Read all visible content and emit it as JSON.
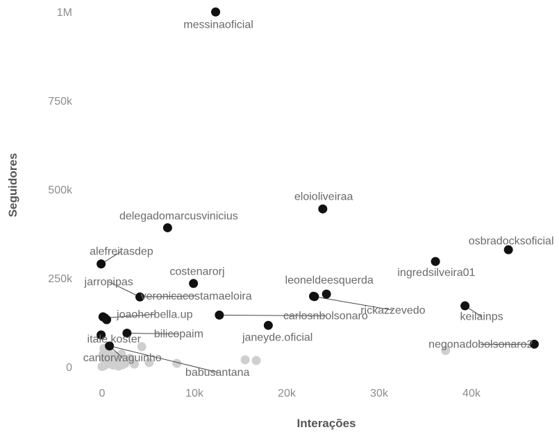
{
  "chart_data": {
    "type": "scatter",
    "xlabel": "Interações",
    "ylabel": "Seguidores",
    "xlim": [
      -1500,
      48500
    ],
    "ylim": [
      -35000,
      1020000
    ],
    "grid": false,
    "x_ticks": [
      {
        "value": 0,
        "label": "0"
      },
      {
        "value": 10000,
        "label": "10k"
      },
      {
        "value": 20000,
        "label": "20k"
      },
      {
        "value": 30000,
        "label": "30k"
      },
      {
        "value": 40000,
        "label": "40k"
      }
    ],
    "y_ticks": [
      {
        "value": 0,
        "label": "0"
      },
      {
        "value": 250000,
        "label": "250k"
      },
      {
        "value": 500000,
        "label": "500k"
      },
      {
        "value": 750000,
        "label": "750k"
      },
      {
        "value": 1000000,
        "label": "1M"
      }
    ],
    "highlight_color": "#111111",
    "other_color": "#cfcfcf",
    "labeled_points": [
      {
        "name": "messinaoficial",
        "x": 12300,
        "y": 1000000,
        "lx": 12600,
        "ly": 955000
      },
      {
        "name": "eloioliveiraa",
        "x": 23900,
        "y": 445000,
        "lx": 24000,
        "ly": 470000
      },
      {
        "name": "delegadomarcusvinicius",
        "x": 7100,
        "y": 392000,
        "lx": 8300,
        "ly": 415000
      },
      {
        "name": "osbradocksoficial",
        "x": 44000,
        "y": 330000,
        "lx": 44300,
        "ly": 345000
      },
      {
        "name": "alefreitasdep",
        "x": -100,
        "y": 290000,
        "lx": 2100,
        "ly": 316000
      },
      {
        "name": "ingredsilveira01",
        "x": 36100,
        "y": 297000,
        "lx": 36200,
        "ly": 256000
      },
      {
        "name": "costenarorj",
        "x": 9900,
        "y": 235000,
        "lx": 10300,
        "ly": 259000
      },
      {
        "name": "leoneldeesquerda",
        "x": 24300,
        "y": 205000,
        "lx": 24600,
        "ly": 235000
      },
      {
        "name": "jarropipas",
        "x": 4100,
        "y": 197000,
        "lx": 730,
        "ly": 230000
      },
      {
        "name": "veronicacostamaeloira",
        "x": 4100,
        "y": 197000,
        "lx": 10200,
        "ly": 190000
      },
      {
        "name": "rickazzevedo",
        "x": 23000,
        "y": 198000,
        "lx": 31500,
        "ly": 150000
      },
      {
        "name": "keilainps",
        "x": 39300,
        "y": 172000,
        "lx": 41100,
        "ly": 132000
      },
      {
        "name": "joaoherbella.up",
        "x": 300,
        "y": 138000,
        "lx": 5700,
        "ly": 138000
      },
      {
        "name": "carlosnbolsonaro",
        "x": 12700,
        "y": 146000,
        "lx": 24200,
        "ly": 134000
      },
      {
        "name": "bilicopaim",
        "x": 2700,
        "y": 95000,
        "lx": 8300,
        "ly": 83000
      },
      {
        "name": "janeyde.oficial",
        "x": 18000,
        "y": 117000,
        "lx": 19000,
        "ly": 73000
      },
      {
        "name": "itale.koster",
        "x": -100,
        "y": 90000,
        "lx": 1300,
        "ly": 69000
      },
      {
        "name": "negonadobolsonaro2",
        "x": 46800,
        "y": 64000,
        "lx": 41000,
        "ly": 54000
      },
      {
        "name": "cantorwaguinho",
        "x": 800,
        "y": 59000,
        "lx": 2200,
        "ly": 16000
      },
      {
        "name": "babusantana",
        "x": 800,
        "y": 59000,
        "lx": 12500,
        "ly": -25000
      }
    ],
    "extra_highlight_points": [
      {
        "x": 100,
        "y": 141000
      },
      {
        "x": 500,
        "y": 133000
      },
      {
        "x": 22900,
        "y": 199000
      }
    ],
    "other_points": [
      {
        "x": 37200,
        "y": 46000
      },
      {
        "x": 15500,
        "y": 20000
      },
      {
        "x": 16700,
        "y": 18000
      },
      {
        "x": 4300,
        "y": 57000
      },
      {
        "x": 8100,
        "y": 10000
      },
      {
        "x": 5100,
        "y": 12000
      },
      {
        "x": 3500,
        "y": 8000
      },
      {
        "x": 3000,
        "y": 24000
      },
      {
        "x": 2100,
        "y": 36000
      },
      {
        "x": 1600,
        "y": 16000
      },
      {
        "x": 1200,
        "y": 5000
      },
      {
        "x": 900,
        "y": 28000
      },
      {
        "x": 700,
        "y": 43000
      },
      {
        "x": 400,
        "y": 12000
      },
      {
        "x": 200,
        "y": 3000
      },
      {
        "x": 100,
        "y": 35000
      },
      {
        "x": 0,
        "y": 1000
      },
      {
        "x": 300,
        "y": 20000
      },
      {
        "x": 1800,
        "y": 2000
      },
      {
        "x": 2500,
        "y": 10000
      },
      {
        "x": 600,
        "y": 8000
      },
      {
        "x": 1000,
        "y": 18000
      },
      {
        "x": 200,
        "y": 52000
      },
      {
        "x": 1400,
        "y": 31000
      },
      {
        "x": 2200,
        "y": 6000
      }
    ]
  }
}
